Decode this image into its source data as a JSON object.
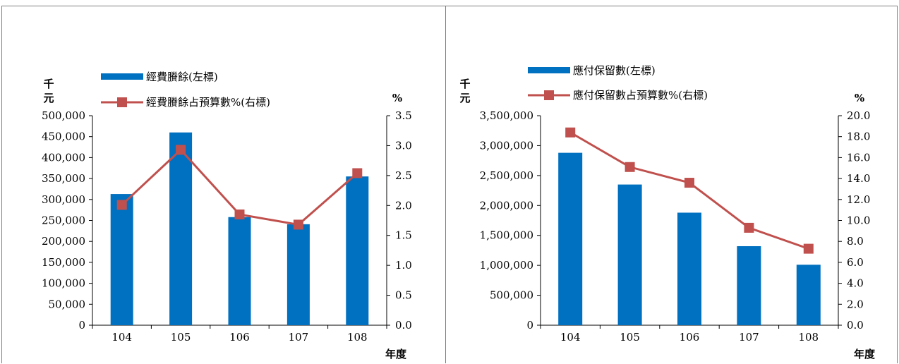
{
  "chart_data": [
    {
      "type": "bar",
      "categories": [
        "104",
        "105",
        "106",
        "107",
        "108"
      ],
      "series": [
        {
          "name": "經費賸餘(左標)",
          "type": "bar",
          "axis": "left",
          "values": [
            313000,
            460000,
            258000,
            241000,
            355000
          ],
          "color": "#0070c0"
        },
        {
          "name": "經費賸餘占預算數%(右標)",
          "type": "line",
          "axis": "right",
          "values": [
            2.01,
            2.93,
            1.85,
            1.68,
            2.54
          ],
          "color": "#c0504d"
        }
      ],
      "left_unit": "千元",
      "right_unit": "%",
      "xlabel": "年度",
      "left_ylim": [
        0,
        500000
      ],
      "left_ticks": [
        "0",
        "50,000",
        "100,000",
        "150,000",
        "200,000",
        "250,000",
        "300,000",
        "350,000",
        "400,000",
        "450,000",
        "500,000"
      ],
      "right_ylim": [
        0,
        3.5
      ],
      "right_ticks": [
        "0.0",
        "0.5",
        "1.0",
        "1.5",
        "2.0",
        "2.5",
        "3.0",
        "3.5"
      ],
      "legend_position": "top-left",
      "grid": false
    },
    {
      "type": "bar",
      "categories": [
        "104",
        "105",
        "106",
        "107",
        "108"
      ],
      "series": [
        {
          "name": "應付保留數(左標)",
          "type": "bar",
          "axis": "left",
          "values": [
            2880000,
            2350000,
            1880000,
            1320000,
            1010000
          ],
          "color": "#0070c0"
        },
        {
          "name": "應付保留數占預算數%(右標)",
          "type": "line",
          "axis": "right",
          "values": [
            18.4,
            15.1,
            13.6,
            9.3,
            7.3
          ],
          "color": "#c0504d"
        }
      ],
      "left_unit": "千元",
      "right_unit": "%",
      "xlabel": "年度",
      "left_ylim": [
        0,
        3500000
      ],
      "left_ticks": [
        "0",
        "500,000",
        "1,000,000",
        "1,500,000",
        "2,000,000",
        "2,500,000",
        "3,000,000",
        "3,500,000"
      ],
      "right_ylim": [
        0,
        20
      ],
      "right_ticks": [
        "0.0",
        "2.0",
        "4.0",
        "6.0",
        "8.0",
        "10.0",
        "12.0",
        "14.0",
        "16.0",
        "18.0",
        "20.0"
      ],
      "legend_position": "top-left",
      "grid": false
    }
  ]
}
